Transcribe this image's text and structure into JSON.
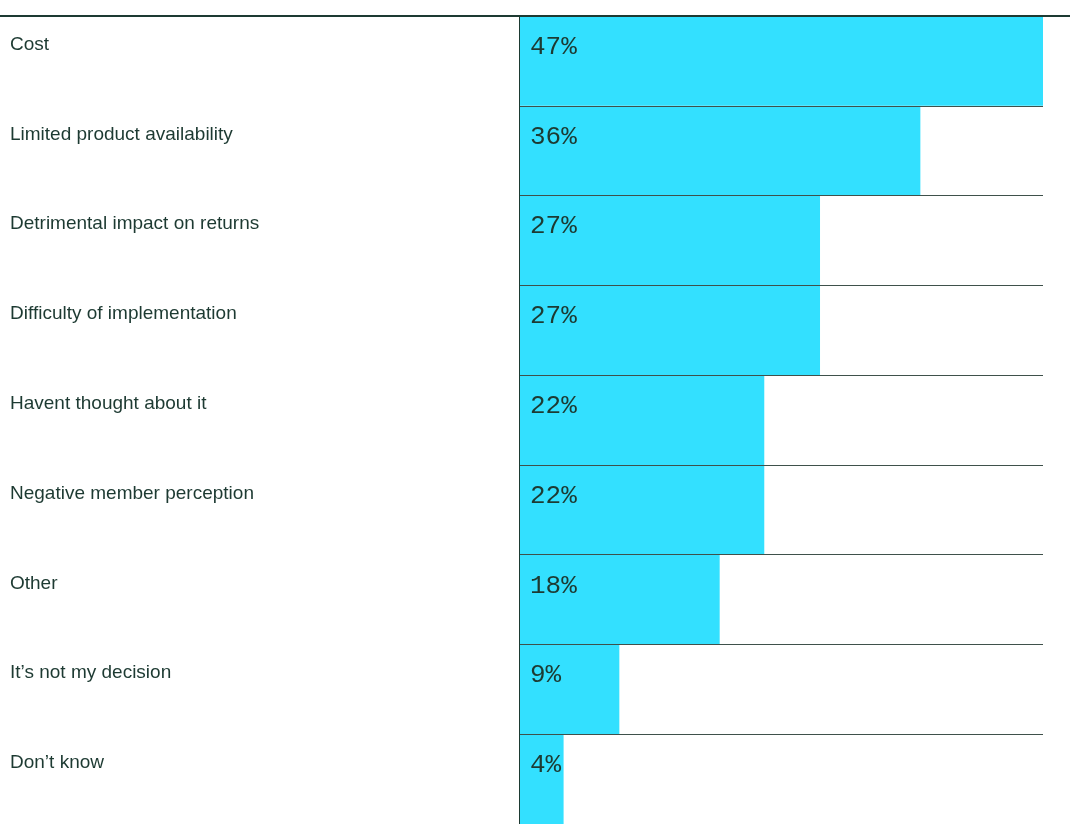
{
  "chart_data": {
    "type": "bar",
    "orientation": "horizontal",
    "categories": [
      "Cost",
      "Limited product availability",
      "Detrimental impact on returns",
      "Difficulty of implementation",
      "Havent thought about it",
      "Negative member perception",
      "Other",
      "It’s not my decision",
      "Don’t know"
    ],
    "values": [
      47,
      36,
      27,
      27,
      22,
      22,
      18,
      9,
      4
    ],
    "value_labels": [
      "47%",
      "36%",
      "27%",
      "27%",
      "22%",
      "22%",
      "18%",
      "9%",
      "4%"
    ],
    "color": "#33e0ff",
    "grid": "y"
  }
}
